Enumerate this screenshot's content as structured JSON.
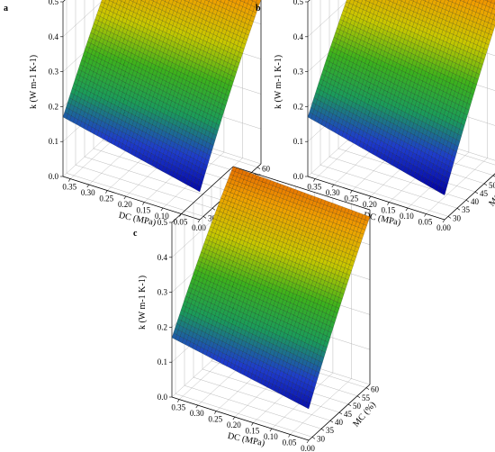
{
  "figure": {
    "panels": [
      {
        "letter": "a"
      },
      {
        "letter": "b"
      },
      {
        "letter": "c"
      }
    ]
  },
  "colors": {
    "colormap": [
      "#0000a0",
      "#1e3ccc",
      "#1a9c5a",
      "#3cb21c",
      "#c8c800",
      "#f0a000",
      "#e05000"
    ],
    "mesh_line": "#000000",
    "axis_line": "#000000"
  },
  "chart_data": [
    {
      "type": "surface3d",
      "panel": "a",
      "xlabel": "DC (MPa)",
      "ylabel": "MC (%)",
      "zlabel": "k (W m-1 K-1)",
      "xlim": [
        0.0,
        0.37
      ],
      "ylim": [
        28,
        62
      ],
      "zlim": [
        0.0,
        0.5
      ],
      "x_ticks": [
        "0.35",
        "0.30",
        "0.25",
        "0.20",
        "0.15",
        "0.10",
        "0.05",
        "0.00"
      ],
      "y_ticks": [
        "30",
        "35",
        "40",
        "45",
        "50",
        "55",
        "60"
      ],
      "z_ticks": [
        "0.0",
        "0.1",
        "0.2",
        "0.3",
        "0.4",
        "0.5"
      ],
      "corner_values": {
        "dc0.00_mc30": 0.08,
        "dc0.37_mc30": 0.17,
        "dc0.00_mc62": 0.47,
        "dc0.37_mc62": 0.52
      },
      "grid": true
    },
    {
      "type": "surface3d",
      "panel": "b",
      "xlabel": "DC (MPa)",
      "ylabel": "MC (%)",
      "zlabel": "k (W m-1 K-1)",
      "xlim": [
        0.0,
        0.37
      ],
      "ylim": [
        28,
        62
      ],
      "zlim": [
        0.0,
        0.5
      ],
      "x_ticks": [
        "0.35",
        "0.30",
        "0.25",
        "0.20",
        "0.15",
        "0.10",
        "0.05",
        "0.00"
      ],
      "y_ticks": [
        "30",
        "35",
        "40",
        "45",
        "50",
        "55",
        "60"
      ],
      "z_ticks": [
        "0.0",
        "0.1",
        "0.2",
        "0.3",
        "0.4",
        "0.5"
      ],
      "corner_values": {
        "dc0.00_mc30": 0.07,
        "dc0.37_mc30": 0.17,
        "dc0.00_mc62": 0.49,
        "dc0.37_mc62": 0.52
      },
      "grid": true
    },
    {
      "type": "surface3d",
      "panel": "c",
      "xlabel": "DC (MPa)",
      "ylabel": "MC (%)",
      "zlabel": "k (W m-1 K-1)",
      "xlim": [
        0.0,
        0.37
      ],
      "ylim": [
        28,
        62
      ],
      "zlim": [
        0.0,
        0.5
      ],
      "x_ticks": [
        "0.35",
        "0.30",
        "0.25",
        "0.20",
        "0.15",
        "0.10",
        "0.05",
        "0.00"
      ],
      "y_ticks": [
        "30",
        "35",
        "40",
        "45",
        "50",
        "55",
        "60"
      ],
      "z_ticks": [
        "0.0",
        "0.1",
        "0.2",
        "0.3",
        "0.4",
        "0.5"
      ],
      "corner_values": {
        "dc0.00_mc30": 0.09,
        "dc0.37_mc30": 0.17,
        "dc0.00_mc62": 0.48,
        "dc0.37_mc62": 0.5
      },
      "grid": true
    }
  ]
}
